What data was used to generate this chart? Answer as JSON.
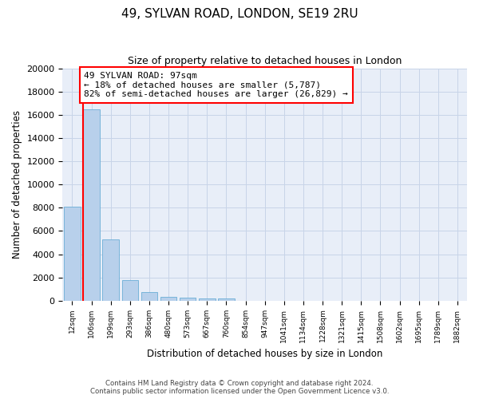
{
  "title": "49, SYLVAN ROAD, LONDON, SE19 2RU",
  "subtitle": "Size of property relative to detached houses in London",
  "xlabel": "Distribution of detached houses by size in London",
  "ylabel": "Number of detached properties",
  "annotation_text": "49 SYLVAN ROAD: 97sqm\n← 18% of detached houses are smaller (5,787)\n82% of semi-detached houses are larger (26,829) →",
  "categories": [
    "12sqm",
    "106sqm",
    "199sqm",
    "293sqm",
    "386sqm",
    "480sqm",
    "573sqm",
    "667sqm",
    "760sqm",
    "854sqm",
    "947sqm",
    "1041sqm",
    "1134sqm",
    "1228sqm",
    "1321sqm",
    "1415sqm",
    "1508sqm",
    "1602sqm",
    "1695sqm",
    "1789sqm",
    "1882sqm"
  ],
  "bar_values": [
    8100,
    16500,
    5300,
    1750,
    750,
    330,
    260,
    220,
    200,
    0,
    0,
    0,
    0,
    0,
    0,
    0,
    0,
    0,
    0,
    0,
    0
  ],
  "bar_color": "#b8d0eb",
  "bar_edge_color": "#6aaed6",
  "ylim": [
    0,
    20000
  ],
  "yticks": [
    0,
    2000,
    4000,
    6000,
    8000,
    10000,
    12000,
    14000,
    16000,
    18000,
    20000
  ],
  "grid_color": "#c8d4e8",
  "bg_color": "#e8eef8",
  "footer1": "Contains HM Land Registry data © Crown copyright and database right 2024.",
  "footer2": "Contains public sector information licensed under the Open Government Licence v3.0."
}
